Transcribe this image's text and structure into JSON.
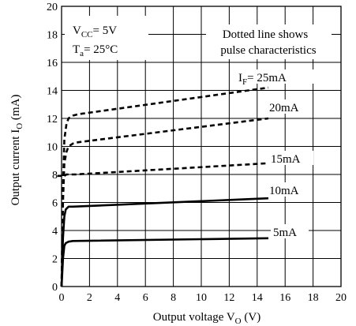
{
  "chart_data": {
    "type": "line",
    "xlabel": "Output voltage V",
    "xlabel_sub": "O",
    "xlabel_unit": " (V)",
    "ylabel": "Output current I",
    "ylabel_sub": "O",
    "ylabel_unit": " (mA)",
    "xlim": [
      0,
      20
    ],
    "ylim": [
      0,
      20
    ],
    "x_ticks": [
      0,
      2,
      4,
      6,
      8,
      10,
      12,
      14,
      16,
      18,
      20
    ],
    "y_ticks": [
      0,
      2,
      4,
      6,
      8,
      10,
      12,
      14,
      16,
      18,
      20
    ],
    "grid": true,
    "conditions": {
      "vcc_prefix": "V",
      "vcc_sub": "CC",
      "vcc_value": "= 5V",
      "ta_prefix": "T",
      "ta_sub": "a",
      "ta_value": "=  25°C"
    },
    "note_line1": "Dotted line shows",
    "note_line2": "pulse characteristics",
    "if_prefix": "I",
    "if_sub": "F",
    "series": [
      {
        "name": "=  25mA",
        "style": "dashed",
        "x": [
          0.0,
          0.1,
          0.2,
          0.35,
          0.5,
          0.8,
          1.2,
          14.8
        ],
        "y": [
          0.0,
          7.0,
          10.5,
          11.6,
          12.0,
          12.2,
          12.3,
          14.2
        ]
      },
      {
        "name": "20mA",
        "style": "dashed",
        "x": [
          0.0,
          0.1,
          0.2,
          0.35,
          0.5,
          0.8,
          1.2,
          14.8
        ],
        "y": [
          0.0,
          6.0,
          8.8,
          9.6,
          10.0,
          10.2,
          10.3,
          12.0
        ]
      },
      {
        "name": "15mA",
        "style": "dashed",
        "x": [
          -0.3,
          0.0,
          0.1,
          0.2,
          0.35,
          0.6,
          1.0,
          14.8
        ],
        "y": [
          7.9,
          7.9,
          7.8,
          7.9,
          8.0,
          8.0,
          8.0,
          8.8
        ]
      },
      {
        "name": "10mA",
        "style": "solid",
        "x": [
          0.0,
          0.1,
          0.2,
          0.3,
          0.5,
          0.8,
          14.8
        ],
        "y": [
          0.0,
          3.5,
          5.0,
          5.5,
          5.7,
          5.7,
          6.3
        ]
      },
      {
        "name": "5mA",
        "style": "solid",
        "x": [
          0.0,
          0.1,
          0.2,
          0.3,
          0.5,
          0.8,
          14.8
        ],
        "y": [
          0.0,
          2.0,
          2.9,
          3.1,
          3.2,
          3.25,
          3.45
        ]
      }
    ]
  }
}
